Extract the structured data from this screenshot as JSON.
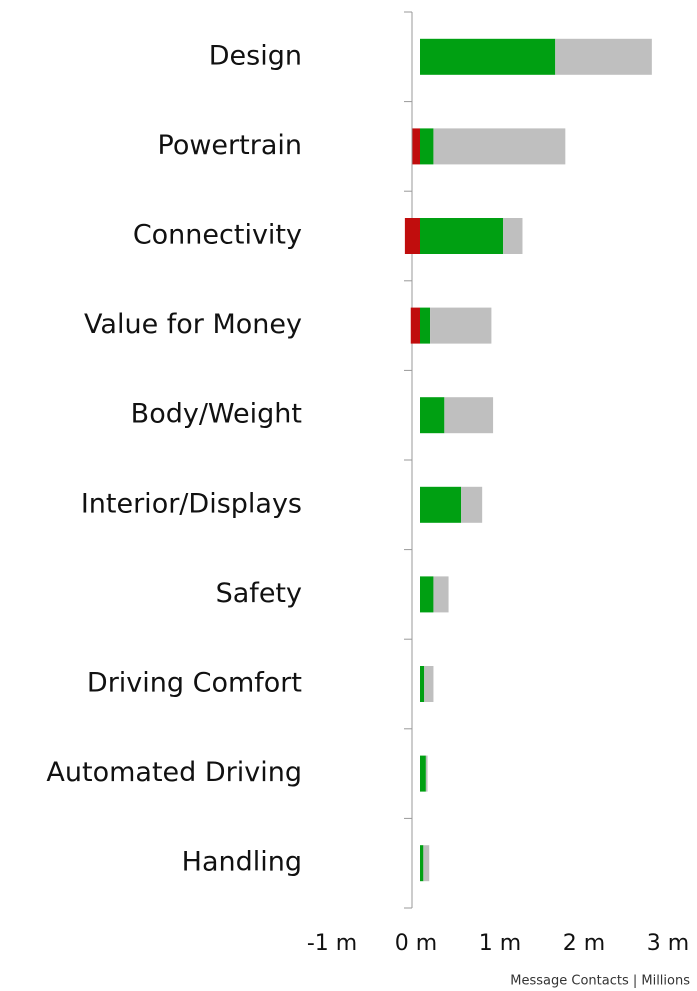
{
  "chart_data": {
    "type": "bar",
    "orientation": "horizontal",
    "stacked": true,
    "categories": [
      "Design",
      "Powertrain",
      "Connectivity",
      "Value for Money",
      "Body/Weight",
      "Interior/Displays",
      "Safety",
      "Driving Comfort",
      "Automated Driving",
      "Handling"
    ],
    "series": [
      {
        "color": "#c00d0d",
        "values": [
          0,
          -0.09,
          -0.18,
          -0.11,
          0,
          0,
          0,
          0,
          0,
          0
        ]
      },
      {
        "color": "#00a012",
        "values": [
          1.61,
          0.16,
          0.99,
          0.12,
          0.29,
          0.49,
          0.16,
          0.05,
          0.07,
          0.04
        ]
      },
      {
        "color": "#bfbfbf",
        "values": [
          1.15,
          1.57,
          0.23,
          0.73,
          0.58,
          0.25,
          0.18,
          0.11,
          0.02,
          0.07
        ]
      }
    ],
    "xlim": [
      -1,
      3
    ],
    "xticks": [
      {
        "value": -1,
        "label": "-1 m"
      },
      {
        "value": 0,
        "label": "0 m"
      },
      {
        "value": 1,
        "label": "1 m"
      },
      {
        "value": 2,
        "label": "2 m"
      },
      {
        "value": 3,
        "label": "3 m"
      }
    ],
    "x_label": "Message Contacts | Millions"
  }
}
